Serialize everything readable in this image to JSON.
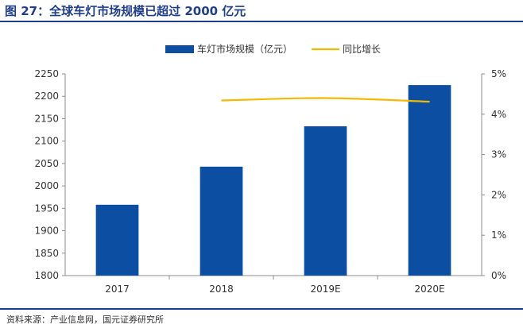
{
  "figure": {
    "title": "图 27：全球车灯市场规模已超过 2000 亿元",
    "source": "资料来源：产业信息网，国元证券研究所"
  },
  "colors": {
    "accent": "#1f3e8c",
    "bar": "#0b4ea2",
    "line": "#f5b800",
    "axis": "#8c8c8c",
    "text": "#333333"
  },
  "chart_data": {
    "type": "bar",
    "categories": [
      "2017",
      "2018",
      "2019E",
      "2020E"
    ],
    "series": [
      {
        "name": "车灯市场规模（亿元）",
        "type": "bar",
        "axis": "left",
        "values": [
          1958,
          2043,
          2133,
          2225
        ]
      },
      {
        "name": "同比增长",
        "type": "line",
        "axis": "right",
        "values": [
          null,
          4.34,
          4.4,
          4.31
        ]
      }
    ],
    "ylim": [
      1800,
      2250
    ],
    "yticks": [
      "1800",
      "1850",
      "1900",
      "1950",
      "2000",
      "2050",
      "2100",
      "2150",
      "2200",
      "2250"
    ],
    "y2lim": [
      0,
      5
    ],
    "y2ticks": [
      "0%",
      "1%",
      "2%",
      "3%",
      "4%",
      "5%"
    ],
    "grid": false,
    "legend_position": "top"
  }
}
